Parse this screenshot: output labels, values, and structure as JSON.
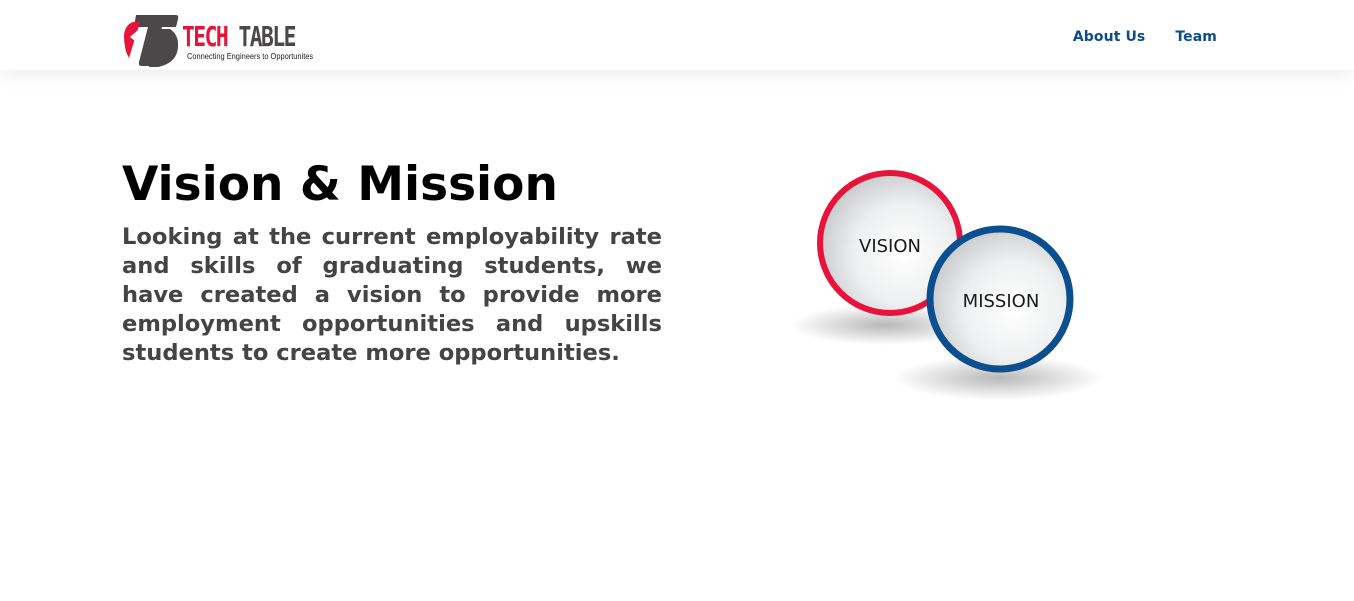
{
  "header": {
    "logo": {
      "word_red": "TECH",
      "word_dark": "TABLE",
      "tagline": "Connecting Engineers to Opportunites"
    },
    "nav": [
      {
        "label": "About Us"
      },
      {
        "label": "Team"
      }
    ]
  },
  "main": {
    "title": "Vision & Mission",
    "body": "Looking at the current employability rate and skills of graduating students, we have created a vision to provide more employment opportunities and upskills students to create more opportunities.",
    "graphic": {
      "circle_1": "VISION",
      "circle_2": "MISSION"
    }
  },
  "colors": {
    "brand_red": "#e8133a",
    "brand_dark": "#4a4848",
    "nav_blue": "#0b4d8c",
    "mission_blue": "#0b4f8e"
  }
}
